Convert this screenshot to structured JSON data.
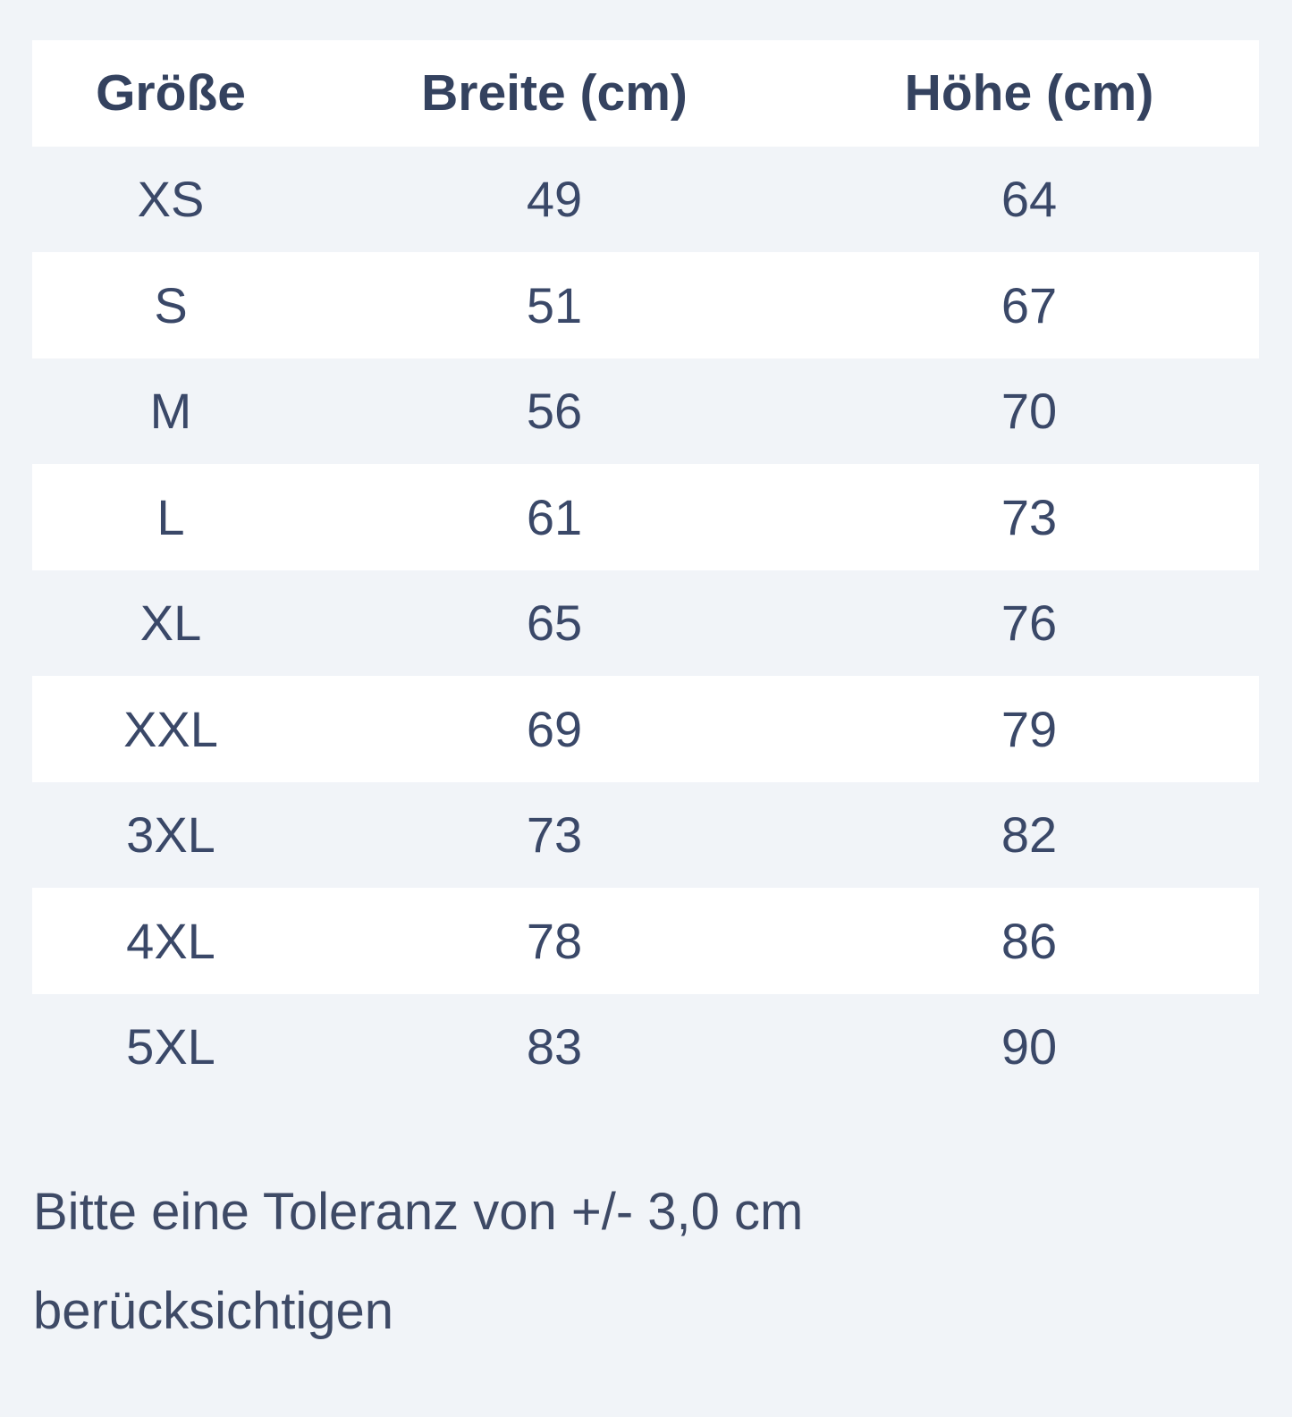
{
  "table": {
    "headers": [
      "Größe",
      "Breite (cm)",
      "Höhe (cm)"
    ],
    "rows": [
      [
        "XS",
        "49",
        "64"
      ],
      [
        "S",
        "51",
        "67"
      ],
      [
        "M",
        "56",
        "70"
      ],
      [
        "L",
        "61",
        "73"
      ],
      [
        "XL",
        "65",
        "76"
      ],
      [
        "XXL",
        "69",
        "79"
      ],
      [
        "3XL",
        "73",
        "82"
      ],
      [
        "4XL",
        "78",
        "86"
      ],
      [
        "5XL",
        "83",
        "90"
      ]
    ]
  },
  "note": "Bitte eine Toleranz von +/- 3,0 cm berücksichtigen",
  "colors": {
    "text": "#354465",
    "background": "#f1f4f8",
    "row_alt": "#ffffff"
  }
}
